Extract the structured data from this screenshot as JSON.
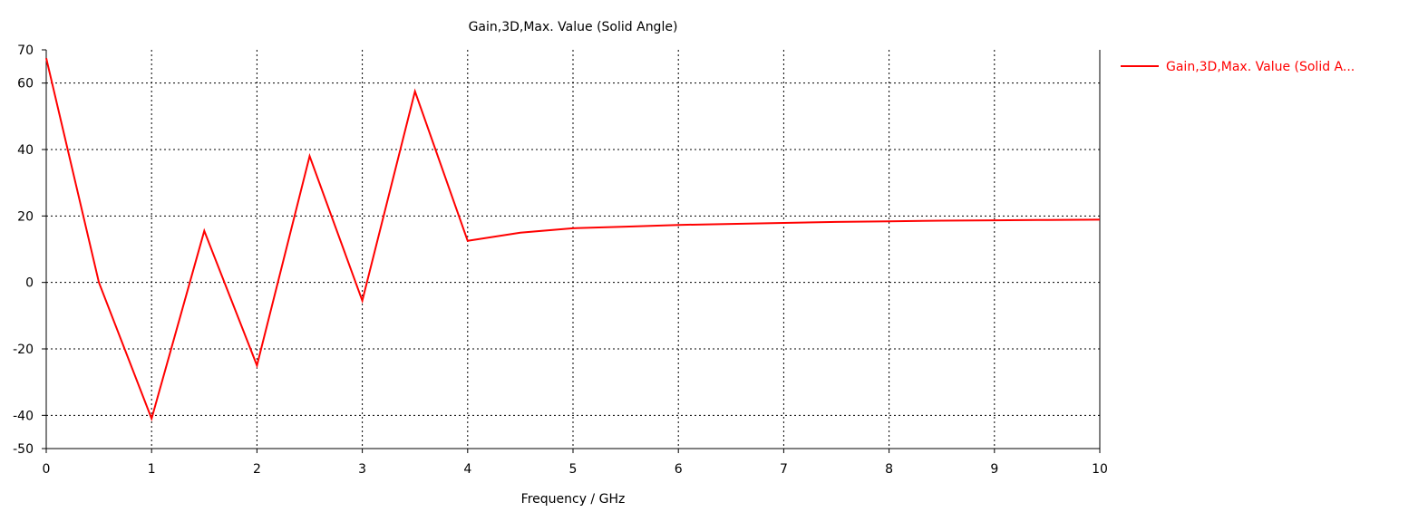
{
  "chart_data": {
    "type": "line",
    "title": "Gain,3D,Max. Value (Solid Angle)",
    "xlabel": "Frequency / GHz",
    "ylabel": "",
    "xlim": [
      0,
      10
    ],
    "ylim": [
      -50,
      70
    ],
    "x_ticks": [
      0,
      1,
      2,
      3,
      4,
      5,
      6,
      7,
      8,
      9,
      10
    ],
    "y_ticks": [
      -50,
      -40,
      -20,
      0,
      20,
      40,
      60,
      70
    ],
    "grid_x": [
      1,
      2,
      3,
      4,
      5,
      6,
      7,
      8,
      9
    ],
    "grid_y": [
      -40,
      -20,
      0,
      20,
      40,
      60
    ],
    "grid": true,
    "grid_style": "dotted",
    "legend_position": "right",
    "series": [
      {
        "name": "Gain,3D,Max. Value (Solid A...",
        "color": "#ff0000",
        "x": [
          0,
          0.5,
          1,
          1.5,
          2,
          2.5,
          3,
          3.5,
          4,
          4.5,
          5,
          5.5,
          6,
          6.5,
          7,
          7.5,
          8,
          8.5,
          9,
          9.5,
          10
        ],
        "y": [
          67.5,
          0,
          -41,
          15.5,
          -25,
          38,
          -5.5,
          57.5,
          12.5,
          15,
          16.3,
          16.8,
          17.3,
          17.6,
          17.9,
          18.2,
          18.4,
          18.6,
          18.7,
          18.8,
          18.9
        ]
      }
    ]
  }
}
